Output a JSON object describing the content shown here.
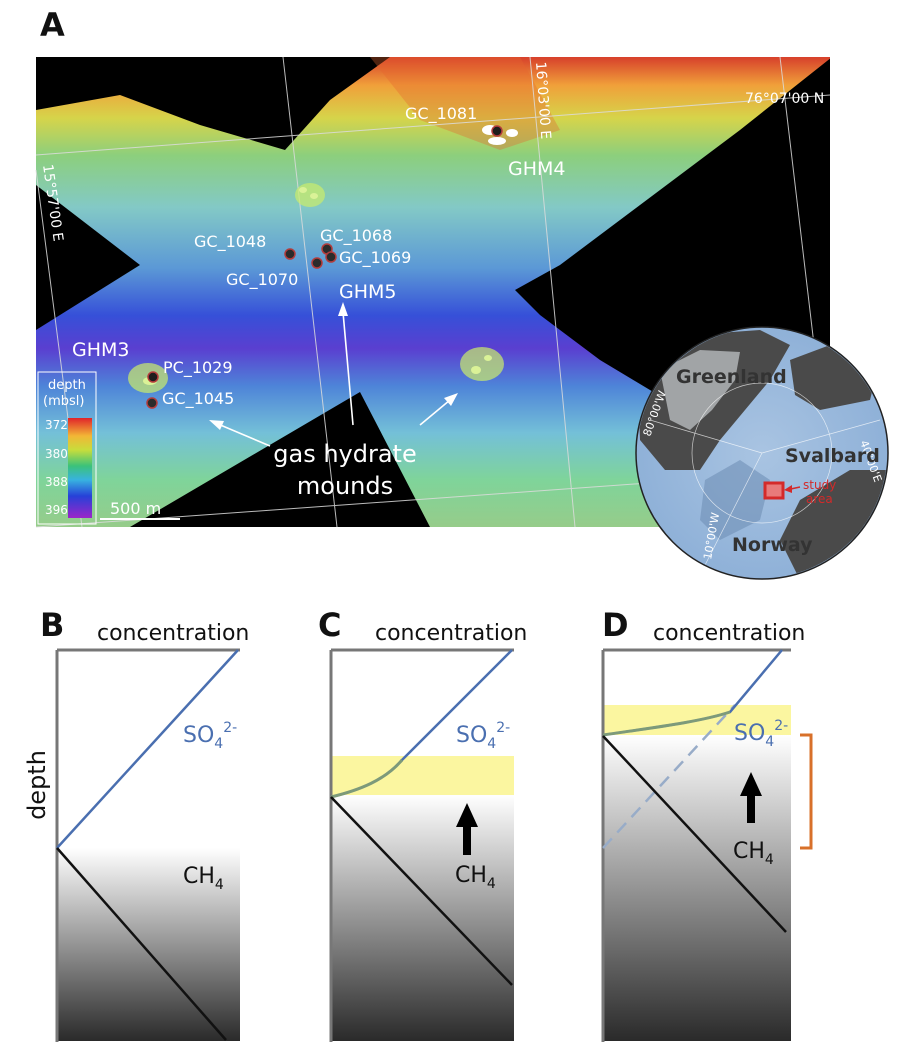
{
  "panels": {
    "a": "A",
    "b": "B",
    "c": "C",
    "d": "D"
  },
  "map": {
    "lat_label": "76°07'00 N",
    "lon_label_east": "16°03'00 E",
    "lon_label_west": "15°57'00 E",
    "sites": {
      "gc1081": "GC_1081",
      "gc1048": "GC_1048",
      "gc1068": "GC_1068",
      "gc1069": "GC_1069",
      "gc1070": "GC_1070",
      "pc1029": "PC_1029",
      "gc1045": "GC_1045"
    },
    "mounds": {
      "ghm3": "GHM3",
      "ghm4": "GHM4",
      "ghm5": "GHM5"
    },
    "callout_line1": "gas hydrate",
    "callout_line2": "mounds",
    "scale_label": "500 m",
    "legend": {
      "title_line1": "depth",
      "title_line2": "(mbsl)",
      "ticks": [
        "372",
        "380",
        "388",
        "396"
      ]
    }
  },
  "inset": {
    "greenland": "Greenland",
    "svalbard": "Svalbard",
    "norway": "Norway",
    "study_line1": "study",
    "study_line2": "area",
    "grid_80w": "80°00'W",
    "grid_40e": "40°00'E",
    "grid_10w": "10°00'W"
  },
  "profiles": {
    "concentration": "concentration",
    "depth": "depth",
    "so4_base": "SO",
    "so4_sub": "4",
    "so4_sup": "2-",
    "ch4_base": "CH",
    "ch4_sub": "4"
  },
  "colors": {
    "sulfate": "#4a6fb0",
    "methane": "#111111",
    "smtz": "#fbf6a0",
    "bracket": "#d8702a",
    "mixing": "#7d9a7a"
  }
}
